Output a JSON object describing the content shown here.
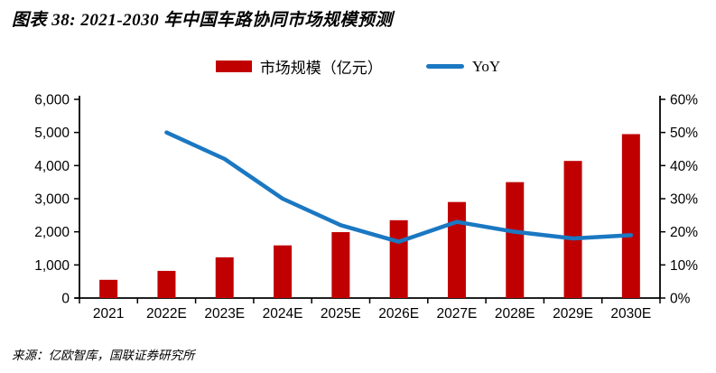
{
  "title": "图表 38: 2021-2030 年中国车路协同市场规模预测",
  "source": "来源：亿欧智库，国联证券研究所",
  "legend": [
    {
      "label": "市场规模（亿元）",
      "swatch": "bar"
    },
    {
      "label": "YoY",
      "swatch": "line"
    }
  ],
  "colors": {
    "bar": "#C00000",
    "line": "#1B78C2",
    "axis": "#000000",
    "title_text": "#000000"
  },
  "chart_data": {
    "type": "bar+line",
    "title": "图表 38: 2021-2030 年中国车路协同市场规模预测",
    "categories": [
      "2021",
      "2022E",
      "2023E",
      "2024E",
      "2025E",
      "2026E",
      "2027E",
      "2028E",
      "2029E",
      "2030E"
    ],
    "series": [
      {
        "name": "市场规模（亿元）",
        "type": "bar",
        "axis": "left",
        "values": [
          550,
          820,
          1230,
          1590,
          1990,
          2350,
          2900,
          3500,
          4140,
          4950
        ]
      },
      {
        "name": "YoY",
        "type": "line",
        "axis": "right",
        "unit": "%",
        "values": [
          null,
          50,
          42,
          30,
          22,
          17,
          23,
          20,
          18,
          19
        ]
      }
    ],
    "left_axis": {
      "min": 0,
      "max": 6000,
      "step": 1000,
      "tick_labels": [
        "0",
        "1,000",
        "2,000",
        "3,000",
        "4,000",
        "5,000",
        "6,000"
      ]
    },
    "right_axis": {
      "min": 0,
      "max": 60,
      "step": 10,
      "tick_labels": [
        "0%",
        "10%",
        "20%",
        "30%",
        "40%",
        "50%",
        "60%"
      ]
    },
    "grid": false,
    "legend_position": "top-center"
  }
}
